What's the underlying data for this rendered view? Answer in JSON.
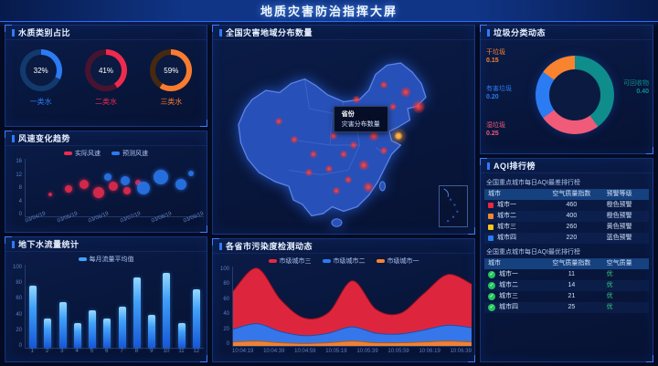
{
  "header": {
    "title": "地质灾害防治指挥大屏"
  },
  "aqi_title": "AQI排行榜",
  "chart_data": [
    {
      "id": "water-quality-rings",
      "type": "pie",
      "title": "水质类别占比",
      "series": [
        {
          "name": "一类水",
          "value_pct": 32,
          "pct_text": "32%",
          "color": "#2b7bf3",
          "track": "#123a6e"
        },
        {
          "name": "二类水",
          "value_pct": 41,
          "pct_text": "41%",
          "color": "#ee2b4e",
          "track": "#471430"
        },
        {
          "name": "三类水",
          "value_pct": 59,
          "pct_text": "59%",
          "color": "#f97b2f",
          "track": "#46290f"
        }
      ]
    },
    {
      "id": "wind-speed-bubbles",
      "type": "scatter",
      "title": "风速变化趋势",
      "ylim": [
        0,
        16
      ],
      "y_ticks": [
        16,
        12,
        8,
        4,
        0
      ],
      "x_ticks": [
        "03/04/19",
        "03/05/19",
        "03/06/19",
        "03/07/19",
        "03/08/19",
        "03/09/19"
      ],
      "series": [
        {
          "name": "实际风速",
          "color": "#ee2b4e",
          "points": [
            [
              14,
              6,
              2
            ],
            [
              24,
              7.5,
              4
            ],
            [
              33,
              9,
              5
            ],
            [
              41,
              6.5,
              6
            ],
            [
              49,
              8.5,
              5
            ],
            [
              57,
              7,
              4
            ],
            [
              63,
              9.5,
              3
            ]
          ]
        },
        {
          "name": "预测风速",
          "color": "#2b7bf3",
          "points": [
            [
              46,
              11,
              4
            ],
            [
              56,
              10,
              5
            ],
            [
              66,
              8,
              7
            ],
            [
              76,
              11,
              8
            ],
            [
              87,
              9,
              6
            ],
            [
              93,
              12,
              3
            ]
          ]
        }
      ]
    },
    {
      "id": "groundwater-flow-bars",
      "type": "bar",
      "title": "地下水流量统计",
      "legend": [
        "每月流量平均值"
      ],
      "legend_color": "#41a0f8",
      "categories": [
        "1",
        "2",
        "3",
        "4",
        "5",
        "6",
        "7",
        "8",
        "9",
        "10",
        "11",
        "12"
      ],
      "values": [
        75,
        35,
        55,
        30,
        45,
        35,
        50,
        85,
        40,
        90,
        30,
        70
      ],
      "ylim": [
        0,
        100
      ],
      "y_ticks": [
        100,
        80,
        60,
        40,
        20,
        0
      ]
    },
    {
      "id": "disaster-map",
      "type": "scatter",
      "title": "全国灾害地域分布数量",
      "tooltip_lines": [
        "省份",
        "灾害分布数量"
      ],
      "points": [
        [
          75,
          26,
          4
        ],
        [
          80,
          34,
          5
        ],
        [
          70,
          34,
          3
        ],
        [
          66,
          22,
          3
        ],
        [
          58,
          42,
          3
        ],
        [
          62,
          50,
          4
        ],
        [
          54,
          55,
          3
        ],
        [
          58,
          66,
          4
        ],
        [
          52,
          74,
          3
        ],
        [
          60,
          78,
          4
        ],
        [
          47,
          80,
          3
        ],
        [
          44,
          68,
          3
        ],
        [
          38,
          60,
          3
        ],
        [
          30,
          52,
          3
        ],
        [
          24,
          42,
          3
        ],
        [
          46,
          50,
          3
        ],
        [
          50,
          60,
          3
        ],
        [
          66,
          58,
          3
        ],
        [
          36,
          70,
          3
        ],
        [
          55,
          30,
          3
        ]
      ],
      "highlight": [
        72,
        50
      ]
    },
    {
      "id": "pollution-area",
      "type": "area",
      "title": "各省市污染度检测动态",
      "ylim": [
        0,
        100
      ],
      "y_ticks": [
        100,
        80,
        60,
        40,
        20,
        0
      ],
      "x_ticks": [
        "10:04:19",
        "10:04:39",
        "10:04:59",
        "10:05:19",
        "10:05:39",
        "10:05:59",
        "10:06:19",
        "10:06:39"
      ],
      "series": [
        {
          "name": "市级城市三",
          "color": "#e9273e",
          "stroke": "#8f1020",
          "values": [
            48,
            70,
            40,
            22,
            26,
            58,
            30,
            26,
            46,
            64,
            55
          ]
        },
        {
          "name": "市级城市二",
          "color": "#2b7bf3",
          "stroke": "#1b4fb0",
          "values": [
            16,
            22,
            14,
            10,
            12,
            18,
            12,
            11,
            15,
            20,
            18
          ]
        },
        {
          "name": "市级城市一",
          "color": "#f9832f",
          "stroke": "#b05a14",
          "values": [
            5,
            6,
            4,
            3,
            4,
            6,
            4,
            4,
            5,
            6,
            5
          ]
        }
      ]
    },
    {
      "id": "garbage-donut",
      "type": "pie",
      "title": "垃圾分类动态",
      "series": [
        {
          "name": "可回收物",
          "value_text": "0.40",
          "weight": 40,
          "color": "#0f8c8c"
        },
        {
          "name": "湿垃圾",
          "value_text": "0.25",
          "weight": 25,
          "color": "#ef5b78"
        },
        {
          "name": "有害垃圾",
          "value_text": "0.20",
          "weight": 20,
          "color": "#2b7bf3"
        },
        {
          "name": "干垃圾",
          "value_text": "0.15",
          "weight": 15,
          "color": "#f9832f"
        }
      ]
    },
    {
      "id": "aqi-worst-table",
      "type": "table",
      "title": "全国重点城市每日AQI最差排行榜",
      "headers": [
        "城市",
        "空气质量指数",
        "预警等级"
      ],
      "rows": [
        {
          "icon_color": "#e9273e",
          "city": "城市一",
          "aqi": 460,
          "level": "橙色预警"
        },
        {
          "icon_color": "#f9832f",
          "city": "城市二",
          "aqi": 400,
          "level": "橙色预警"
        },
        {
          "icon_color": "#f6c51e",
          "city": "城市三",
          "aqi": 260,
          "level": "黄色预警"
        },
        {
          "icon_color": "#2b7bf3",
          "city": "城市四",
          "aqi": 220,
          "level": "蓝色预警"
        }
      ]
    },
    {
      "id": "aqi-best-table",
      "type": "table",
      "title": "全国重点城市每日AQI最优排行榜",
      "headers": [
        "城市",
        "空气质量指数",
        "空气质量"
      ],
      "level_color": "#35d07f",
      "rows": [
        {
          "icon_color": "#22c55e",
          "city": "城市一",
          "aqi": 11,
          "level": "优"
        },
        {
          "icon_color": "#22c55e",
          "city": "城市二",
          "aqi": 14,
          "level": "优"
        },
        {
          "icon_color": "#22c55e",
          "city": "城市三",
          "aqi": 21,
          "level": "优"
        },
        {
          "icon_color": "#22c55e",
          "city": "城市四",
          "aqi": 25,
          "level": "优"
        }
      ]
    }
  ]
}
